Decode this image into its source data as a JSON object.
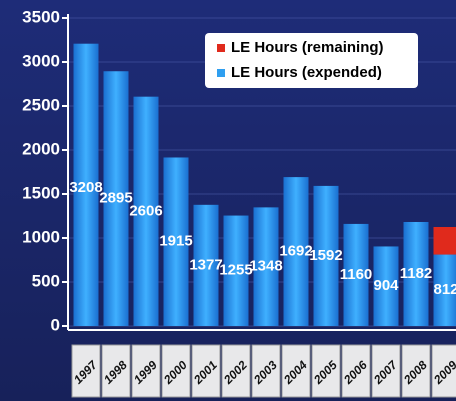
{
  "chart_data": {
    "type": "stacked_bar",
    "categories": [
      "1997",
      "1998",
      "1999",
      "2000",
      "2001",
      "2002",
      "2003",
      "2004",
      "2005",
      "2006",
      "2007",
      "2008",
      "2009"
    ],
    "series": [
      {
        "name": "LE Hours (expended)",
        "color": "#2f9ff0",
        "values": [
          3208,
          2895,
          2606,
          1915,
          1377,
          1255,
          1348,
          1692,
          1592,
          1160,
          904,
          1182,
          812
        ]
      },
      {
        "name": "LE Hours (remaining)",
        "color": "#e02a1c",
        "values": [
          null,
          null,
          null,
          null,
          null,
          null,
          null,
          null,
          null,
          null,
          null,
          null,
          313
        ]
      }
    ],
    "ylim": [
      0,
      3500
    ],
    "yticks": [
      0,
      500,
      1000,
      1500,
      2000,
      2500,
      3000,
      3500
    ],
    "grid": true,
    "legend": "upper right"
  }
}
